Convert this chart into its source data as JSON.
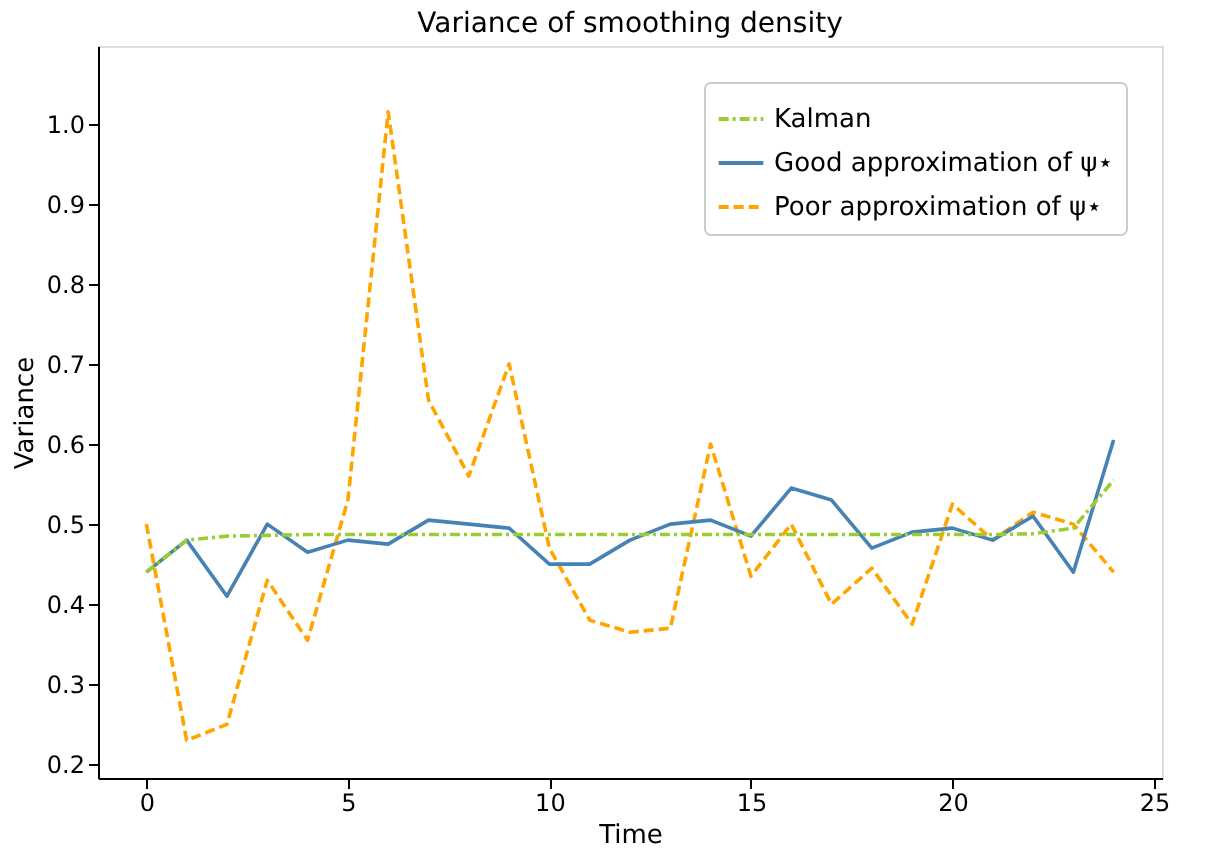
{
  "chart_data": {
    "type": "line",
    "title": "Variance of smoothing density",
    "xlabel": "Time",
    "ylabel": "Variance",
    "x": [
      0,
      1,
      2,
      3,
      4,
      5,
      6,
      7,
      8,
      9,
      10,
      11,
      12,
      13,
      14,
      15,
      16,
      17,
      18,
      19,
      20,
      21,
      22,
      23,
      24
    ],
    "series": [
      {
        "name": "Kalman",
        "color": "#9acd32",
        "line_style": "dashdot",
        "values": [
          0.44,
          0.48,
          0.485,
          0.486,
          0.487,
          0.487,
          0.487,
          0.487,
          0.487,
          0.487,
          0.487,
          0.487,
          0.487,
          0.487,
          0.487,
          0.487,
          0.487,
          0.487,
          0.487,
          0.487,
          0.487,
          0.487,
          0.488,
          0.495,
          0.555
        ]
      },
      {
        "name": "Good approximation of ψ⋆",
        "color": "#4682b4",
        "line_style": "solid",
        "values": [
          0.44,
          0.48,
          0.41,
          0.5,
          0.465,
          0.48,
          0.475,
          0.505,
          0.5,
          0.495,
          0.45,
          0.45,
          0.48,
          0.5,
          0.505,
          0.485,
          0.545,
          0.53,
          0.47,
          0.49,
          0.495,
          0.48,
          0.51,
          0.44,
          0.605
        ]
      },
      {
        "name": "Poor approximation of ψ⋆",
        "color": "#ffa500",
        "line_style": "dashed",
        "values": [
          0.5,
          0.23,
          0.25,
          0.43,
          0.355,
          0.53,
          1.015,
          0.655,
          0.56,
          0.7,
          0.47,
          0.38,
          0.365,
          0.37,
          0.6,
          0.435,
          0.5,
          0.4,
          0.445,
          0.375,
          0.525,
          0.48,
          0.515,
          0.5,
          0.44
        ]
      }
    ],
    "xlim": [
      -1.2,
      25.2
    ],
    "xticks": [
      0,
      5,
      10,
      15,
      20,
      25
    ],
    "ylim": [
      0.183,
      1.097
    ],
    "yticks": [
      0.2,
      0.3,
      0.4,
      0.5,
      0.6,
      0.7,
      0.8,
      0.9,
      {
        "value": 1,
        "label": "1.0"
      }
    ],
    "grid": false,
    "legend": "top right",
    "marker": "none"
  }
}
